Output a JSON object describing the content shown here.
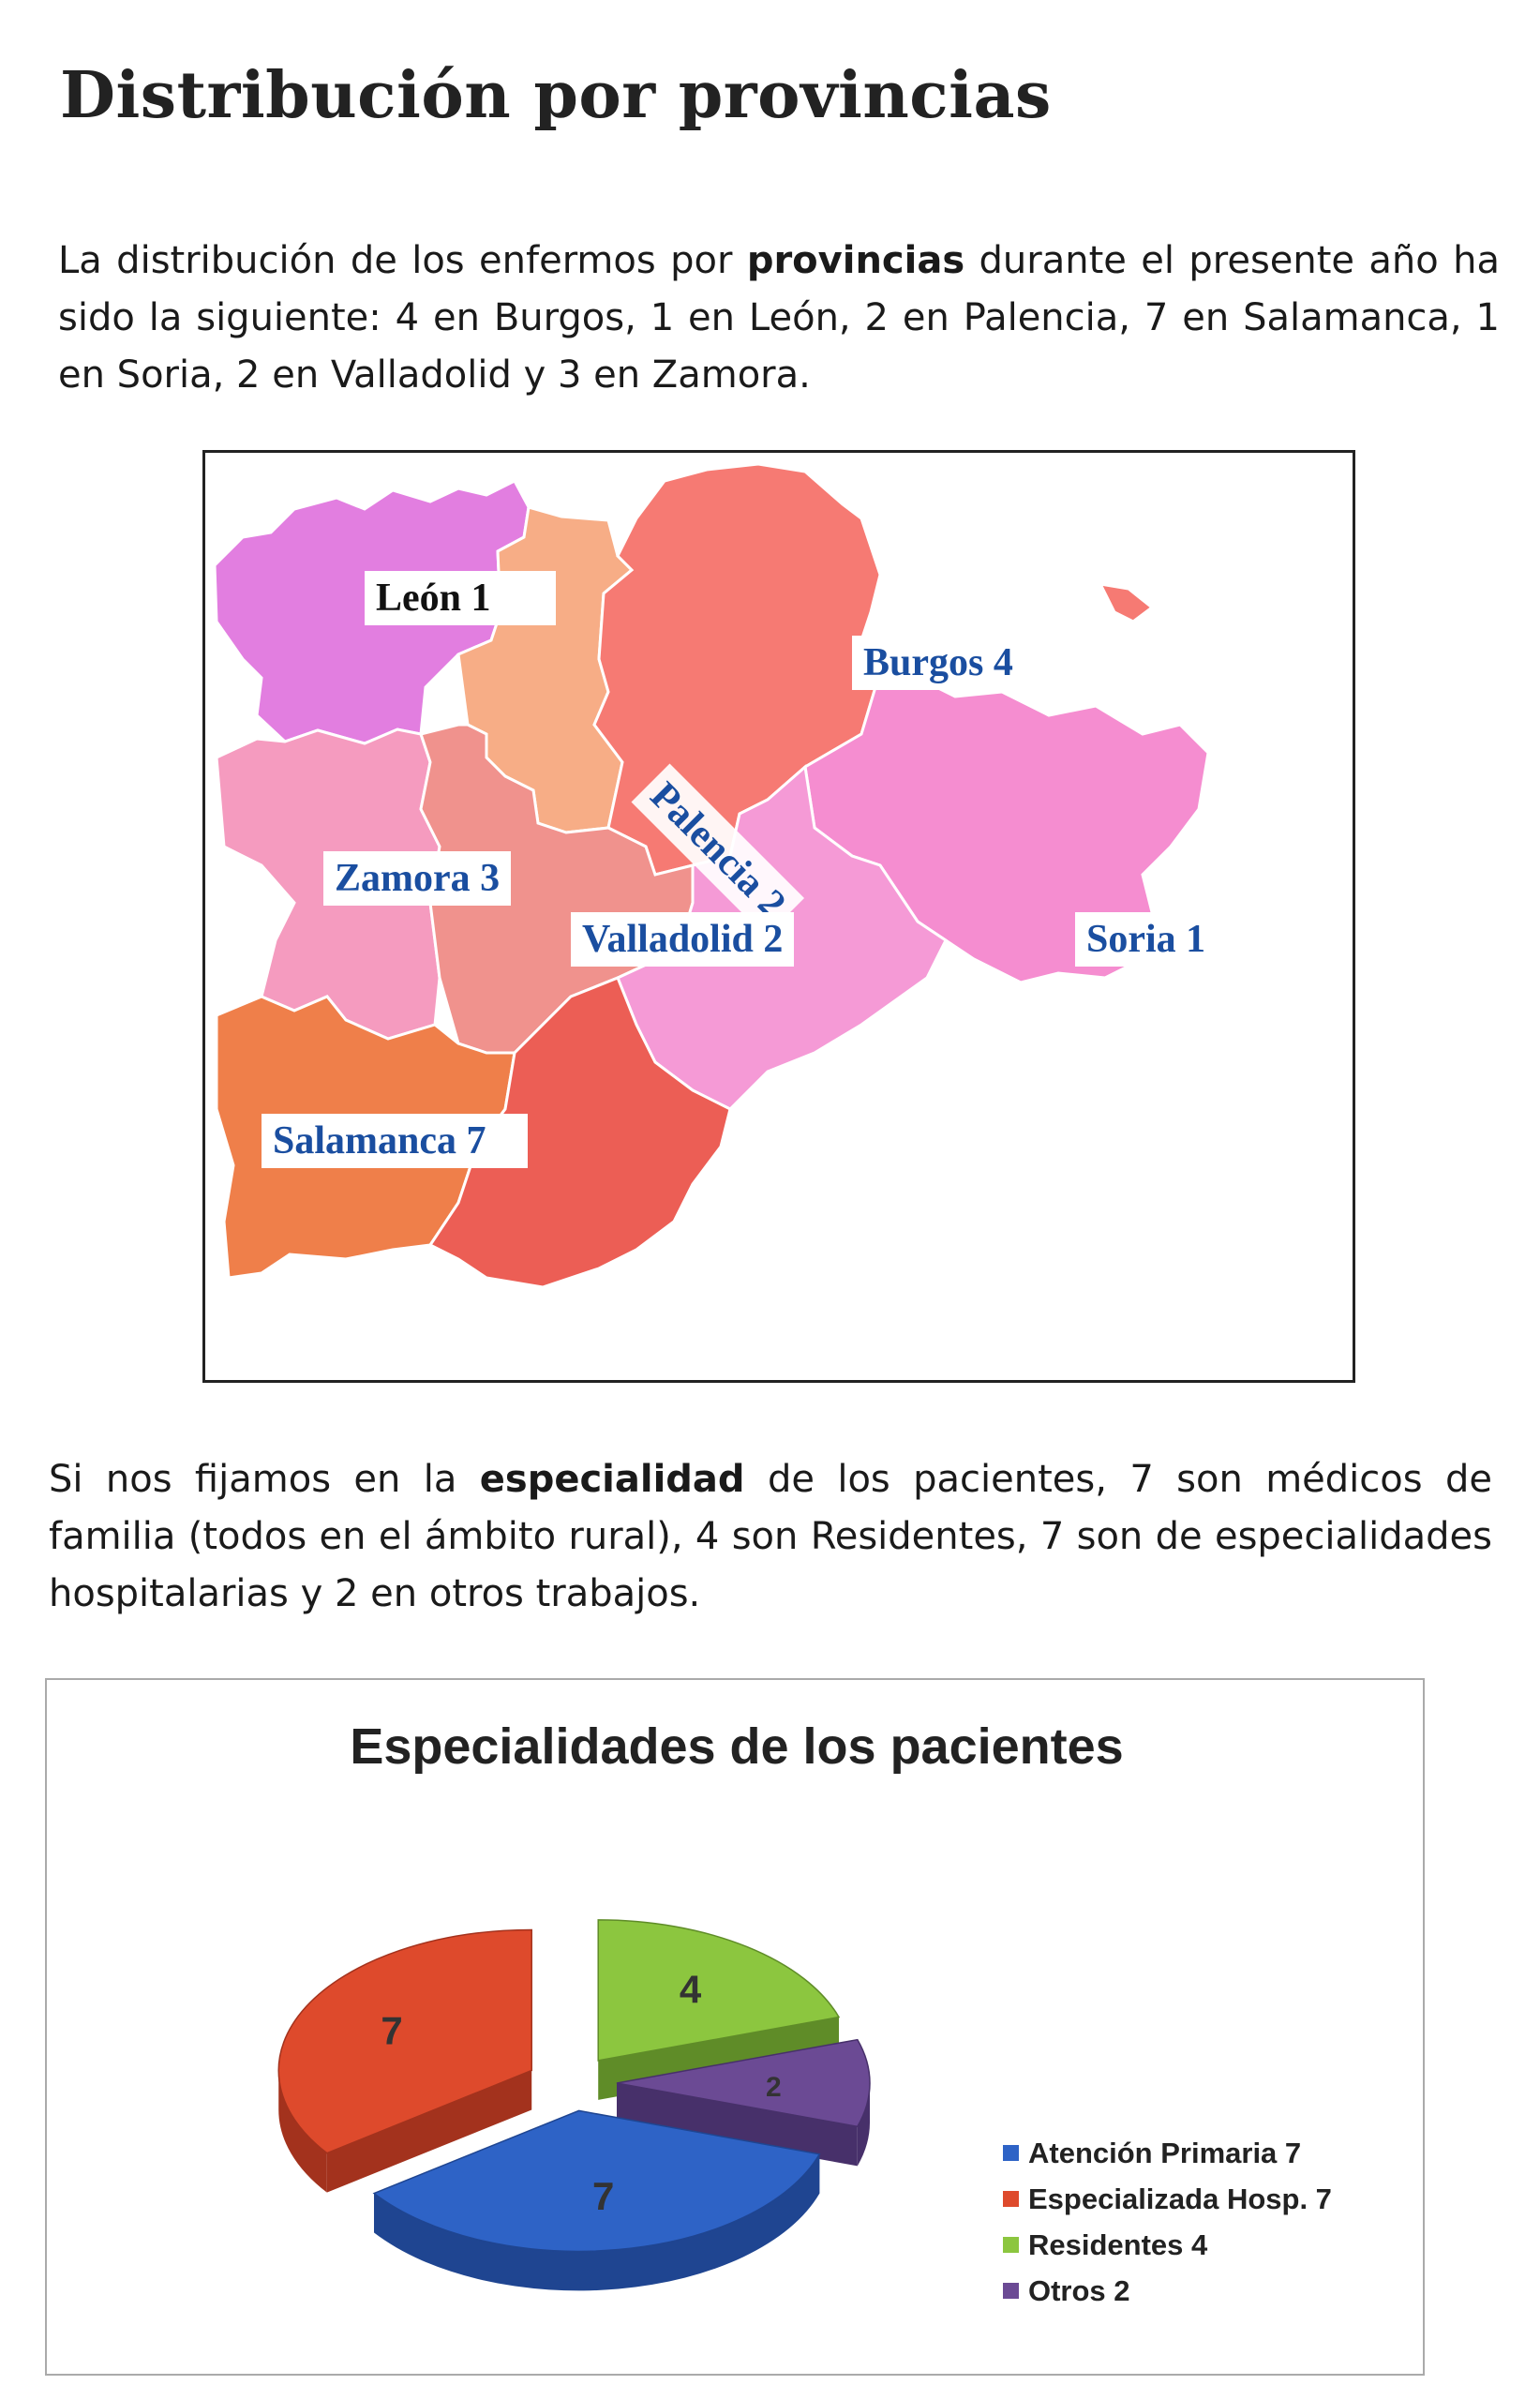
{
  "title": "Distribución por provincias",
  "para1": {
    "pre": "La distribución de los enfermos por ",
    "bold": "provincias",
    "post": " durante el presente año ha sido la siguiente: 4 en Burgos, 1 en León, 2 en Palencia, 7 en Salamanca, 1 en Soria, 2 en Valladolid y 3 en Zamora."
  },
  "map": {
    "labels": {
      "leon": "León 1",
      "burgos": "Burgos 4",
      "palencia": "Palencia 2",
      "zamora": "Zamora 3",
      "valladolid": "Valladolid 2",
      "soria": "Soria 1",
      "salamanca": "Salamanca 7"
    },
    "colors": {
      "leon": "#e27ee0",
      "palencia": "#f7ad86",
      "burgos": "#f67a73",
      "zamora": "#f59bbf",
      "valladolid": "#f0928d",
      "soria": "#f58dd0",
      "salamanca": "#ef7f4a",
      "avila": "#ec5e55",
      "segovia": "#f59ad6"
    }
  },
  "para2": {
    "pre": "Si nos fijamos en la ",
    "bold": "especialidad",
    "post": " de los pacientes, 7 son médicos de familia (todos en el ámbito rural), 4 son Residentes, 7 son de especialidades hospitalarias y 2 en otros trabajos."
  },
  "chart_data": {
    "type": "pie",
    "title": "Especialidades de los pacientes",
    "slices": [
      {
        "name": "Atención Primaria",
        "value": 7,
        "color": "#2e63c6",
        "side": "#1f4591",
        "legend": "Atención Primaria  7",
        "label": "7"
      },
      {
        "name": "Especializada Hosp.",
        "value": 7,
        "color": "#de4a2c",
        "side": "#a3321d",
        "legend": "Especializada Hosp. 7",
        "label": "7"
      },
      {
        "name": "Residentes",
        "value": 4,
        "color": "#8cc63f",
        "side": "#5f8c28",
        "legend": "Residentes 4",
        "label": "4"
      },
      {
        "name": "Otros",
        "value": 2,
        "color": "#6b4a94",
        "side": "#47306a",
        "legend": "Otros 2",
        "label": "2"
      }
    ],
    "legend_position": "bottom-right"
  }
}
